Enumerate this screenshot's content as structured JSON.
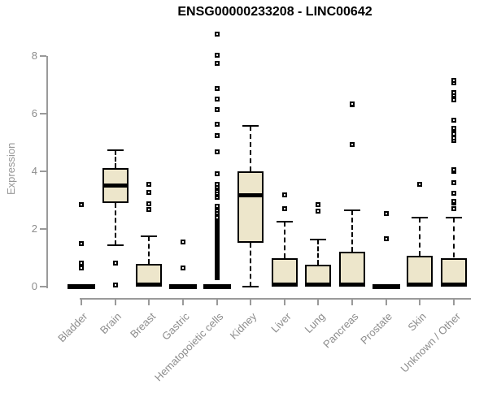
{
  "chart_data": {
    "type": "boxplot",
    "title": "ENSG00000233208 - LINC00642",
    "xlabel": "",
    "ylabel": "Expression",
    "yticks": [
      0,
      2,
      4,
      6,
      8
    ],
    "ylim": [
      0,
      8.9
    ],
    "grid": false,
    "legend": "none",
    "categories": [
      "Bladder",
      "Brain",
      "Breast",
      "Gastric",
      "Hematopoietic cells",
      "Kidney",
      "Liver",
      "Lung",
      "Pancreas",
      "Prostate",
      "Skin",
      "Unknown / Other"
    ],
    "boxes": [
      {
        "category": "Bladder",
        "collapsed": true,
        "q1": 0,
        "median": 0,
        "q3": 0,
        "whisker_low": 0,
        "whisker_high": 0,
        "outliers": [
          0.65,
          0.82,
          1.5,
          2.85
        ]
      },
      {
        "category": "Brain",
        "collapsed": false,
        "q1": 2.9,
        "median": 3.5,
        "q3": 4.1,
        "whisker_low": 1.45,
        "whisker_high": 4.73,
        "outliers": [
          0.05,
          0.82
        ]
      },
      {
        "category": "Breast",
        "collapsed": false,
        "q1": 0,
        "median": 0,
        "q3": 0.8,
        "whisker_low": 0,
        "whisker_high": 1.76,
        "outliers": [
          2.67,
          2.88,
          3.28,
          3.56
        ]
      },
      {
        "category": "Gastric",
        "collapsed": true,
        "q1": 0,
        "median": 0,
        "q3": 0,
        "whisker_low": 0,
        "whisker_high": 0,
        "outliers": [
          0.65,
          1.55
        ]
      },
      {
        "category": "Hematopoietic cells",
        "collapsed": true,
        "q1": 0,
        "median": 0,
        "q3": 0,
        "whisker_low": 0,
        "whisker_high": 0,
        "outlier_range": {
          "from": 0.3,
          "to": 2.42,
          "step": 0.055
        },
        "outliers": [
          2.5,
          2.57,
          2.64,
          2.72,
          2.8,
          3.1,
          3.17,
          3.25,
          3.32,
          3.4,
          3.47,
          3.54,
          3.92,
          4.68,
          5.24,
          5.63,
          6.14,
          6.51,
          6.87,
          7.75,
          8.03,
          8.76
        ]
      },
      {
        "category": "Kidney",
        "collapsed": false,
        "q1": 1.52,
        "median": 3.18,
        "q3": 4.0,
        "whisker_low": 0,
        "whisker_high": 5.58,
        "outliers": []
      },
      {
        "category": "Liver",
        "collapsed": false,
        "q1": 0,
        "median": 0,
        "q3": 0.99,
        "whisker_low": 0,
        "whisker_high": 2.25,
        "outliers": [
          2.7,
          3.18
        ]
      },
      {
        "category": "Lung",
        "collapsed": false,
        "q1": 0,
        "median": 0,
        "q3": 0.75,
        "whisker_low": 0,
        "whisker_high": 1.63,
        "outliers": [
          2.62,
          2.85
        ]
      },
      {
        "category": "Pancreas",
        "collapsed": false,
        "q1": 0,
        "median": 0,
        "q3": 1.21,
        "whisker_low": 0,
        "whisker_high": 2.65,
        "outliers": [
          4.93,
          6.31,
          6.35
        ]
      },
      {
        "category": "Prostate",
        "collapsed": true,
        "q1": 0,
        "median": 0,
        "q3": 0,
        "whisker_low": 0,
        "whisker_high": 0,
        "outliers": [
          1.66,
          2.53
        ]
      },
      {
        "category": "Skin",
        "collapsed": false,
        "q1": 0,
        "median": 0,
        "q3": 1.07,
        "whisker_low": 0,
        "whisker_high": 2.39,
        "outliers": [
          3.55
        ]
      },
      {
        "category": "Unknown / Other",
        "collapsed": false,
        "q1": 0,
        "median": 0,
        "q3": 1.0,
        "whisker_low": 0,
        "whisker_high": 2.39,
        "outliers": [
          2.7,
          2.9,
          2.96,
          3.24,
          3.61,
          4.0,
          4.07,
          5.07,
          5.15,
          5.3,
          5.44,
          5.5,
          5.77,
          6.48,
          6.66,
          6.74,
          7.08,
          7.16
        ]
      }
    ],
    "colors": {
      "box_fill": "#EDE6CB",
      "box_border": "#000000",
      "median": "#000000",
      "whisker": "#000000",
      "outlier": "#000000",
      "axis": "#9A9A9A",
      "tick_label": "#8C8C8C",
      "title": "#000000",
      "background": "#FFFFFF"
    }
  }
}
